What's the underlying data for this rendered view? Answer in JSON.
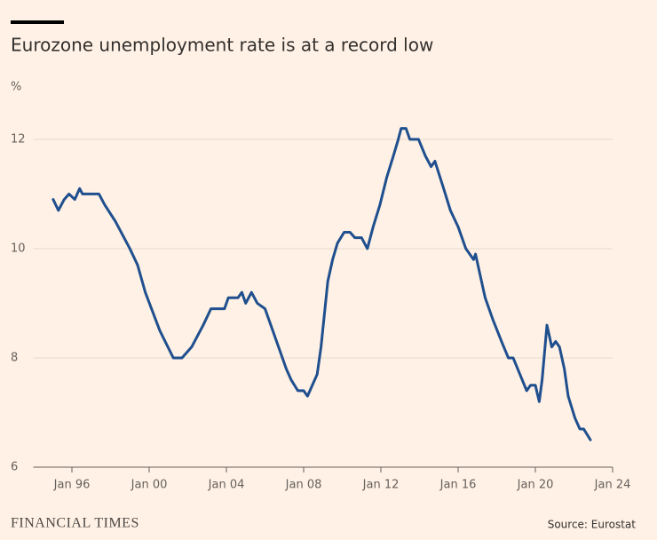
{
  "chart_data": {
    "type": "line",
    "title": "Eurozone unemployment rate is at a record low",
    "y_label": "%",
    "source": "Source: Eurostat",
    "brand": "FINANCIAL TIMES",
    "x": [
      1995.03,
      1995.3,
      1995.6,
      1995.85,
      1996.15,
      1996.4,
      1996.55,
      1997.4,
      1997.7,
      1998.25,
      1999.0,
      1999.4,
      1999.8,
      2000.55,
      2001.25,
      2001.7,
      2002.2,
      2002.8,
      2003.2,
      2003.9,
      2004.1,
      2004.6,
      2004.8,
      2005.0,
      2005.3,
      2005.6,
      2006.0,
      2006.3,
      2006.7,
      2007.1,
      2007.35,
      2007.7,
      2008.0,
      2008.2,
      2008.45,
      2008.7,
      2008.9,
      2009.25,
      2009.5,
      2009.75,
      2010.1,
      2010.4,
      2010.65,
      2011.0,
      2011.3,
      2011.6,
      2011.95,
      2012.3,
      2012.65,
      2012.9,
      2013.05,
      2013.3,
      2013.5,
      2013.95,
      2014.3,
      2014.6,
      2014.8,
      2015.25,
      2015.6,
      2016.0,
      2016.4,
      2016.8,
      2016.9,
      2017.15,
      2017.4,
      2017.8,
      2018.25,
      2018.6,
      2018.85,
      2019.2,
      2019.55,
      2019.75,
      2020.0,
      2020.2,
      2020.35,
      2020.6,
      2020.85,
      2021.05,
      2021.25,
      2021.5,
      2021.7,
      2022.05,
      2022.3,
      2022.5,
      2022.85
    ],
    "series": [
      {
        "name": "Eurozone unemployment rate",
        "color": "#1f4f8e",
        "values": [
          10.9,
          10.7,
          10.9,
          11.0,
          10.9,
          11.1,
          11.0,
          11.0,
          10.8,
          10.5,
          10.0,
          9.7,
          9.2,
          8.5,
          8.0,
          8.0,
          8.2,
          8.6,
          8.9,
          8.9,
          9.1,
          9.1,
          9.2,
          9.0,
          9.2,
          9.0,
          8.9,
          8.6,
          8.2,
          7.8,
          7.6,
          7.4,
          7.4,
          7.3,
          7.5,
          7.7,
          8.2,
          9.4,
          9.8,
          10.1,
          10.3,
          10.3,
          10.2,
          10.2,
          10.0,
          10.4,
          10.8,
          11.3,
          11.7,
          12.0,
          12.2,
          12.2,
          12.0,
          12.0,
          11.7,
          11.5,
          11.6,
          11.1,
          10.7,
          10.4,
          10.0,
          9.8,
          9.9,
          9.5,
          9.1,
          8.7,
          8.3,
          8.0,
          8.0,
          7.7,
          7.4,
          7.5,
          7.5,
          7.2,
          7.6,
          8.6,
          8.2,
          8.3,
          8.2,
          7.8,
          7.3,
          6.9,
          6.7,
          6.7,
          6.5
        ]
      }
    ],
    "xlim": [
      1994,
      2024
    ],
    "xticks": [
      {
        "value": 1996,
        "label": "Jan 96"
      },
      {
        "value": 2000,
        "label": "Jan 00"
      },
      {
        "value": 2004,
        "label": "Jan 04"
      },
      {
        "value": 2008,
        "label": "Jan 08"
      },
      {
        "value": 2012,
        "label": "Jan 12"
      },
      {
        "value": 2016,
        "label": "Jan 16"
      },
      {
        "value": 2020,
        "label": "Jan 20"
      },
      {
        "value": 2024,
        "label": "Jan 24"
      }
    ],
    "ylim": [
      6,
      12.6
    ],
    "yticks": [
      6,
      8,
      10,
      12
    ],
    "grid": true
  }
}
